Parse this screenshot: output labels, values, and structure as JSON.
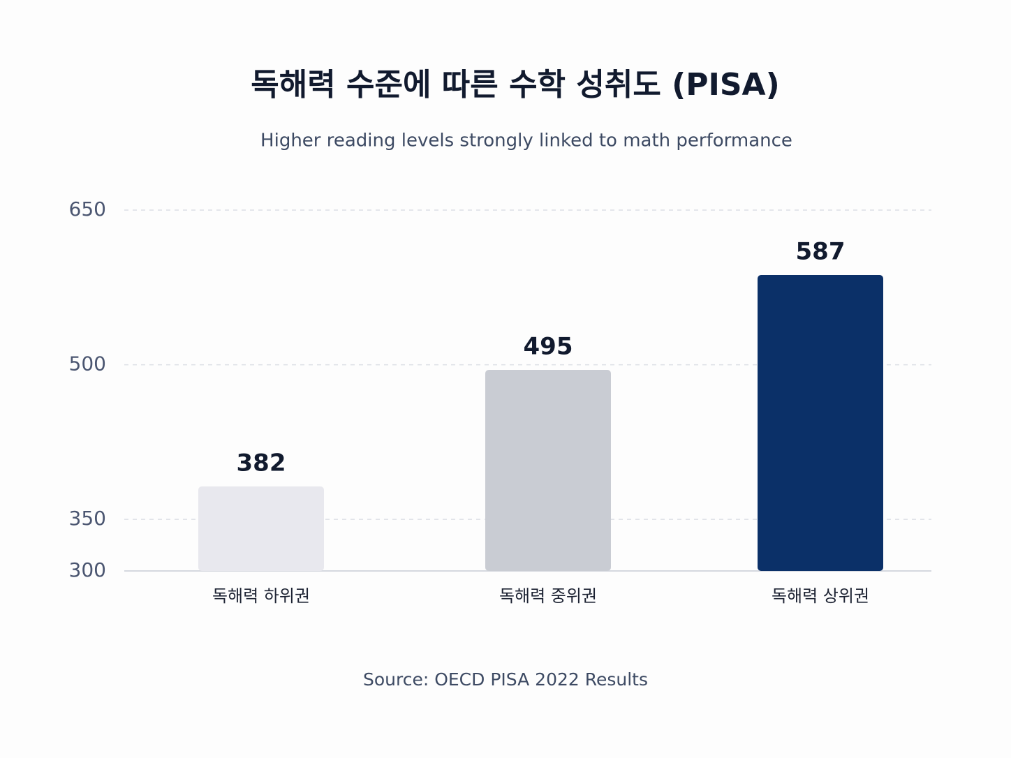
{
  "chart_data": {
    "type": "bar",
    "title": "독해력 수준에 따른 수학 성취도 (PISA)",
    "subtitle": "Higher reading levels strongly linked to math performance",
    "source": "Source: OECD PISA 2022 Results",
    "categories": [
      "독해력 하위권",
      "독해력 중위권",
      "독해력 상위권"
    ],
    "values": [
      382,
      495,
      587
    ],
    "colors": [
      "#e8e8ee",
      "#c9ccd3",
      "#0b3068"
    ],
    "ylim": [
      300,
      650
    ],
    "yticks": [
      300,
      350,
      500,
      650
    ],
    "grid": true
  }
}
